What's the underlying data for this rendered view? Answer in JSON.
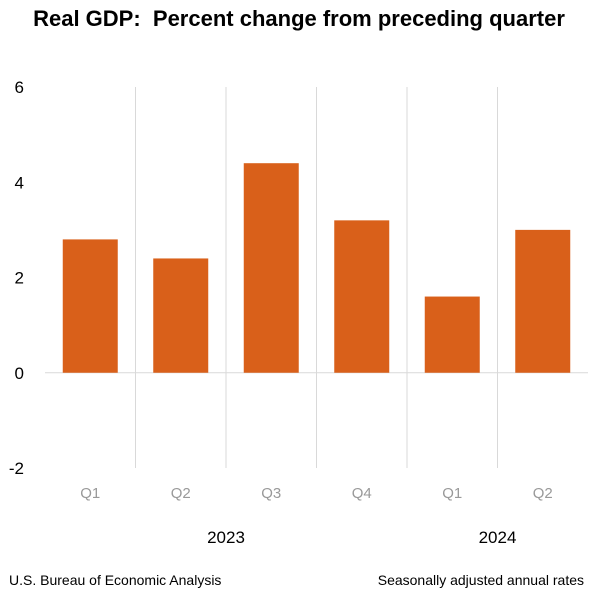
{
  "chart_data": {
    "type": "bar",
    "title": "Real GDP:  Percent change from preceding quarter",
    "categories": [
      "Q1",
      "Q2",
      "Q3",
      "Q4",
      "Q1",
      "Q2"
    ],
    "groups": [
      {
        "label": "2023",
        "count": 4
      },
      {
        "label": "2024",
        "count": 2
      }
    ],
    "values": [
      2.8,
      2.4,
      4.4,
      3.2,
      1.6,
      3.0
    ],
    "ylim": [
      -2,
      6
    ],
    "yticks": [
      -2,
      0,
      2,
      4,
      6
    ],
    "xlabel": "",
    "ylabel": "",
    "grid": "vertical separators",
    "legend": "none",
    "bar_color": "#D9601A"
  },
  "footer": {
    "source": "U.S. Bureau of Economic Analysis",
    "note": "Seasonally adjusted annual rates"
  }
}
